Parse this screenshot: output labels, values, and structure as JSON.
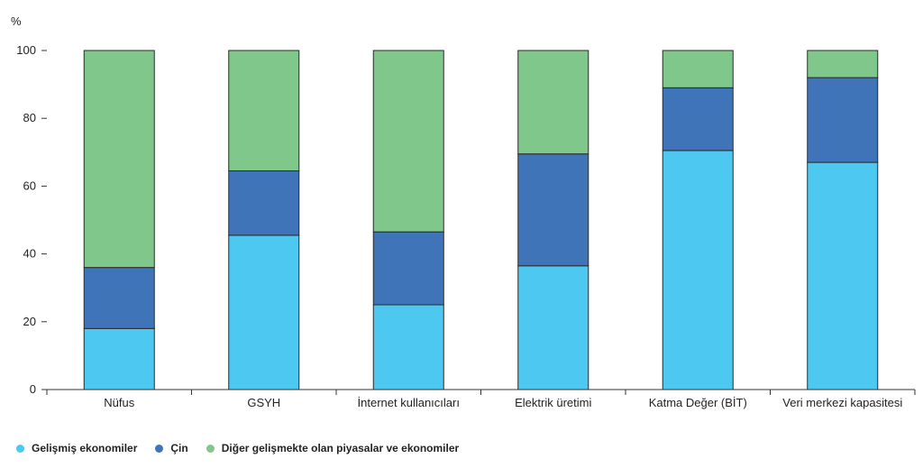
{
  "chart_data": {
    "type": "bar",
    "stacked": true,
    "unit_label": "%",
    "ylim": [
      0,
      100
    ],
    "yticks": [
      0,
      20,
      40,
      60,
      80,
      100
    ],
    "grid": false,
    "legend_position": "bottom-left",
    "categories": [
      "Nüfus",
      "GSYH",
      "İnternet kullanıcıları",
      "Elektrik üretimi",
      "Katma Değer (BİT)",
      "Veri merkezi kapasitesi"
    ],
    "series": [
      {
        "name": "Gelişmiş ekonomiler",
        "color": "#4dc8f0",
        "values": [
          18,
          45.5,
          25,
          36.5,
          70.5,
          67
        ]
      },
      {
        "name": "Çin",
        "color": "#3f74b9",
        "values": [
          18,
          19,
          21.5,
          33,
          18.5,
          25
        ]
      },
      {
        "name": "Diğer gelişmekte olan piyasalar ve ekonomiler",
        "color": "#7fc78b",
        "values": [
          64,
          35.5,
          53.5,
          30.5,
          11,
          8
        ]
      }
    ]
  }
}
